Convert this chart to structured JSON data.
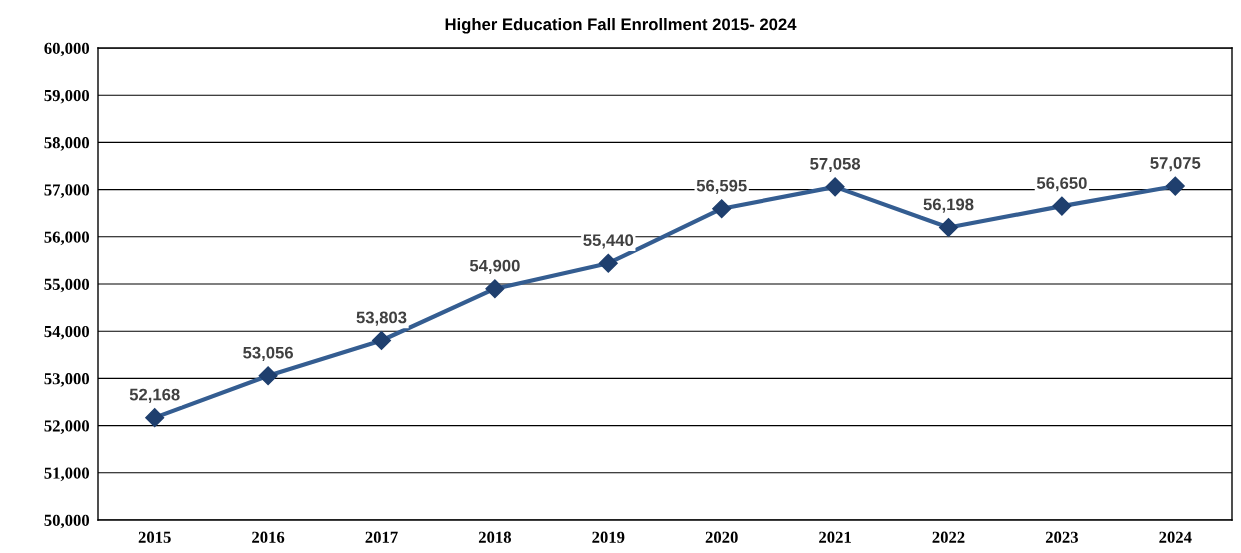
{
  "chart_data": {
    "type": "line",
    "title": "Higher Education Fall Enrollment 2015- 2024",
    "categories": [
      "2015",
      "2016",
      "2017",
      "2018",
      "2019",
      "2020",
      "2021",
      "2022",
      "2023",
      "2024"
    ],
    "series": [
      {
        "color": "#345d91",
        "values": [
          52168,
          53056,
          53803,
          54900,
          55440,
          56595,
          57058,
          56198,
          56650,
          57075
        ]
      }
    ],
    "ylim": [
      50000,
      60000
    ],
    "yticks": [
      {
        "value": 50000,
        "label": "50,000"
      },
      {
        "value": 51000,
        "label": "51,000"
      },
      {
        "value": 52000,
        "label": "52,000"
      },
      {
        "value": 53000,
        "label": "53,000"
      },
      {
        "value": 54000,
        "label": "54,000"
      },
      {
        "value": 55000,
        "label": "55,000"
      },
      {
        "value": 56000,
        "label": "56,000"
      },
      {
        "value": 57000,
        "label": "57,000"
      },
      {
        "value": 58000,
        "label": "58,000"
      },
      {
        "value": 59000,
        "label": "59,000"
      },
      {
        "value": 60000,
        "label": "60,000"
      }
    ],
    "grid": "y",
    "marker": "diamond",
    "line_style": "solid",
    "value_labels": [
      "52,168",
      "53,056",
      "53,803",
      "54,900",
      "55,440",
      "56,595",
      "57,058",
      "56,198",
      "56,650",
      "57,075"
    ]
  }
}
